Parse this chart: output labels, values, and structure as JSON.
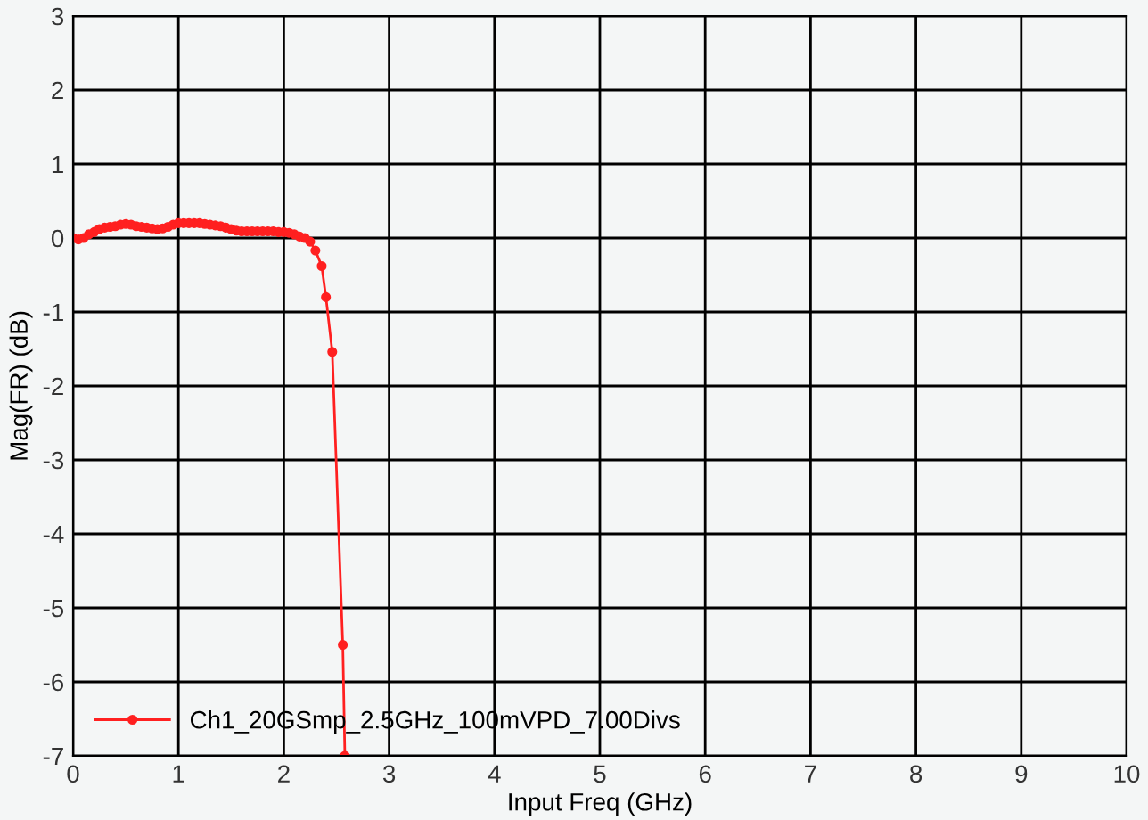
{
  "chart_data": {
    "type": "line",
    "xlabel": "Input Freq (GHz)",
    "ylabel": "Mag(FR) (dB)",
    "xlim": [
      0,
      10
    ],
    "ylim": [
      -7,
      3
    ],
    "xticks": [
      0,
      1,
      2,
      3,
      4,
      5,
      6,
      7,
      8,
      9,
      10
    ],
    "yticks": [
      -7,
      -6,
      -5,
      -4,
      -3,
      -2,
      -1,
      0,
      1,
      2,
      3
    ],
    "grid": true,
    "legend": "bottom left",
    "marker": "circle",
    "line_style": "solid",
    "series": [
      {
        "name": "Ch1_20GSmp_2.5GHz_100mVPD_7.00Divs",
        "color": "#ff2020",
        "x": [
          0,
          0.05,
          0.1,
          0.15,
          0.2,
          0.25,
          0.3,
          0.35,
          0.4,
          0.45,
          0.5,
          0.55,
          0.6,
          0.65,
          0.7,
          0.75,
          0.8,
          0.85,
          0.9,
          0.95,
          1.0,
          1.05,
          1.1,
          1.15,
          1.2,
          1.25,
          1.3,
          1.35,
          1.4,
          1.45,
          1.5,
          1.55,
          1.6,
          1.65,
          1.7,
          1.75,
          1.8,
          1.85,
          1.9,
          1.95,
          2.0,
          2.05,
          2.1,
          2.15,
          2.2,
          2.25,
          2.3,
          2.36,
          2.4,
          2.46,
          2.56,
          2.58
        ],
        "values": [
          0,
          -0.02,
          0,
          0.05,
          0.08,
          0.12,
          0.14,
          0.15,
          0.16,
          0.18,
          0.19,
          0.18,
          0.16,
          0.15,
          0.14,
          0.13,
          0.12,
          0.13,
          0.15,
          0.18,
          0.2,
          0.2,
          0.2,
          0.2,
          0.2,
          0.19,
          0.18,
          0.17,
          0.16,
          0.14,
          0.12,
          0.1,
          0.09,
          0.09,
          0.09,
          0.09,
          0.09,
          0.09,
          0.09,
          0.08,
          0.08,
          0.07,
          0.05,
          0.02,
          0,
          -0.05,
          -0.17,
          -0.38,
          -0.8,
          -1.54,
          -5.5,
          -7
        ]
      }
    ]
  }
}
